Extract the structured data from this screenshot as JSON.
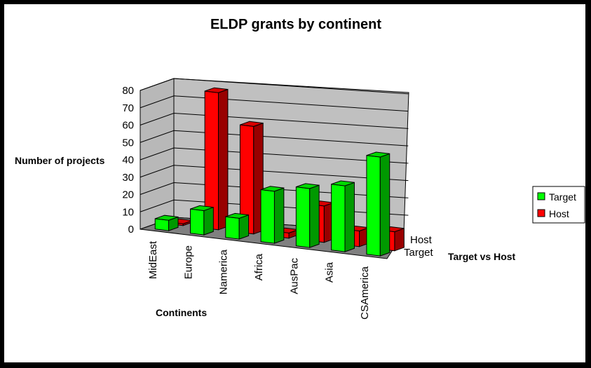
{
  "chart_data": {
    "type": "bar",
    "subtype": "3d-clustered-depth",
    "title": "ELDP grants by continent",
    "ylabel": "Number of projects",
    "xlabel": "Continents",
    "zlabel": "Target vs Host",
    "categories": [
      "MidEast",
      "Europe",
      "Namerica",
      "Africa",
      "AusPac",
      "Asia",
      "CSAmerica"
    ],
    "series": [
      {
        "name": "Target",
        "color": "#00ff00",
        "values": [
          6,
          14,
          12,
          30,
          34,
          38,
          57
        ]
      },
      {
        "name": "Host",
        "color": "#ff0000",
        "values": [
          1,
          79,
          62,
          3,
          21,
          9,
          11
        ]
      }
    ],
    "yticks": [
      "0",
      "10",
      "20",
      "30",
      "40",
      "50",
      "60",
      "70",
      "80"
    ],
    "ylim": [
      0,
      80
    ],
    "depth_labels": [
      "Host",
      "Target"
    ],
    "legend": {
      "position": "right",
      "entries": [
        "Target",
        "Host"
      ]
    },
    "grid": true
  }
}
